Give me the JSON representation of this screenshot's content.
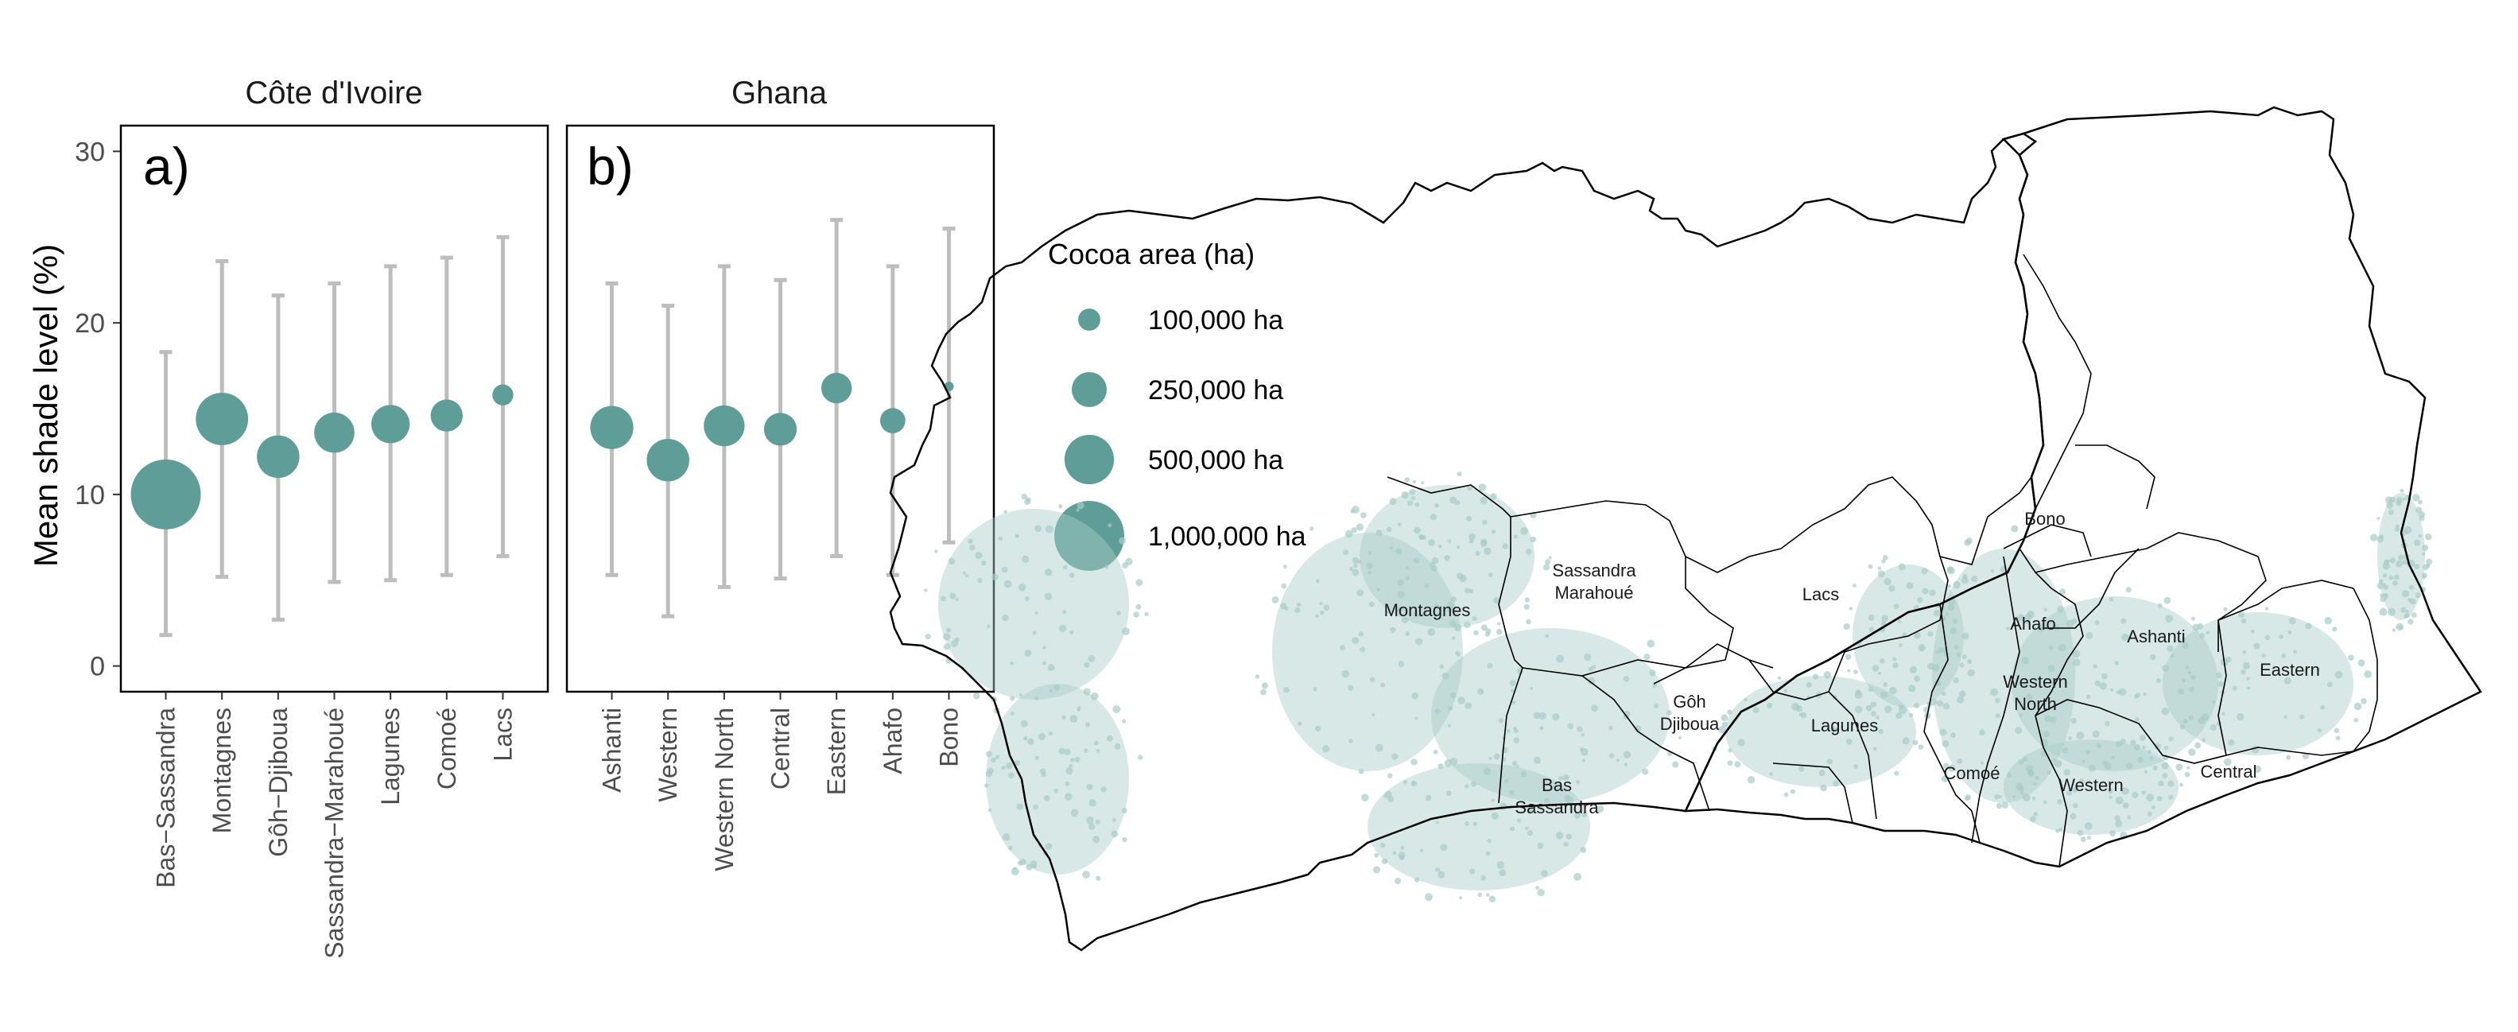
{
  "chart_data": [
    {
      "type": "scatter",
      "panel": "a)",
      "facet_title": "Côte d'Ivoire",
      "ylabel": "Mean shade level (%)",
      "xlabel": "",
      "ylim": [
        -1.5,
        31.5
      ],
      "yticks": [
        0,
        10,
        20,
        30
      ],
      "grid": false,
      "categories": [
        "Bas−Sassandra",
        "Montagnes",
        "Gôh−Djiboua",
        "Sassandra−Marahoué",
        "Lagunes",
        "Comoé",
        "Lacs"
      ],
      "mean": [
        10.0,
        14.4,
        12.2,
        13.6,
        14.1,
        14.6,
        15.8
      ],
      "lower": [
        1.8,
        5.2,
        2.7,
        4.9,
        5.0,
        5.3,
        6.4
      ],
      "upper": [
        18.3,
        23.6,
        21.6,
        22.3,
        23.3,
        23.8,
        25.0
      ],
      "cocoa_area_ha": [
        1000000,
        560000,
        370000,
        330000,
        300000,
        210000,
        90000
      ]
    },
    {
      "type": "scatter",
      "panel": "b)",
      "facet_title": "Ghana",
      "ylim": [
        -1.5,
        31.5
      ],
      "grid": false,
      "categories": [
        "Ashanti",
        "Western",
        "Western North",
        "Central",
        "Eastern",
        "Ahafo",
        "Bono"
      ],
      "mean": [
        13.9,
        12.0,
        14.0,
        13.8,
        16.2,
        14.3,
        16.3
      ],
      "lower": [
        5.3,
        2.9,
        4.6,
        5.1,
        6.4,
        5.3,
        7.2
      ],
      "upper": [
        22.3,
        21.0,
        23.3,
        22.5,
        26.0,
        23.3,
        25.5
      ],
      "cocoa_area_ha": [
        380000,
        370000,
        340000,
        220000,
        190000,
        130000,
        15000
      ]
    }
  ],
  "colors": {
    "point": "#5f9e98",
    "errorbar": "#bdbdbd",
    "map_cocoa": "#a8ccc8",
    "map_border": "#000000"
  },
  "legend": {
    "title": "Cocoa area (ha)",
    "placement": "right",
    "entries": [
      {
        "label": "100,000 ha",
        "value": 100000
      },
      {
        "label": "250,000 ha",
        "value": 250000
      },
      {
        "label": "500,000 ha",
        "value": 500000
      },
      {
        "label": "1,000,000 ha",
        "value": 1000000
      }
    ]
  },
  "map": {
    "region_labels": [
      "Montagnes",
      "Sassandra\nMarahoué",
      "Lacs",
      "Gôh\nDjiboua",
      "Lagunes",
      "Bas\nSassandra",
      "Comoé",
      "Bono",
      "Ahafo",
      "Ashanti",
      "Western\nNorth",
      "Eastern",
      "Western",
      "Central"
    ]
  }
}
